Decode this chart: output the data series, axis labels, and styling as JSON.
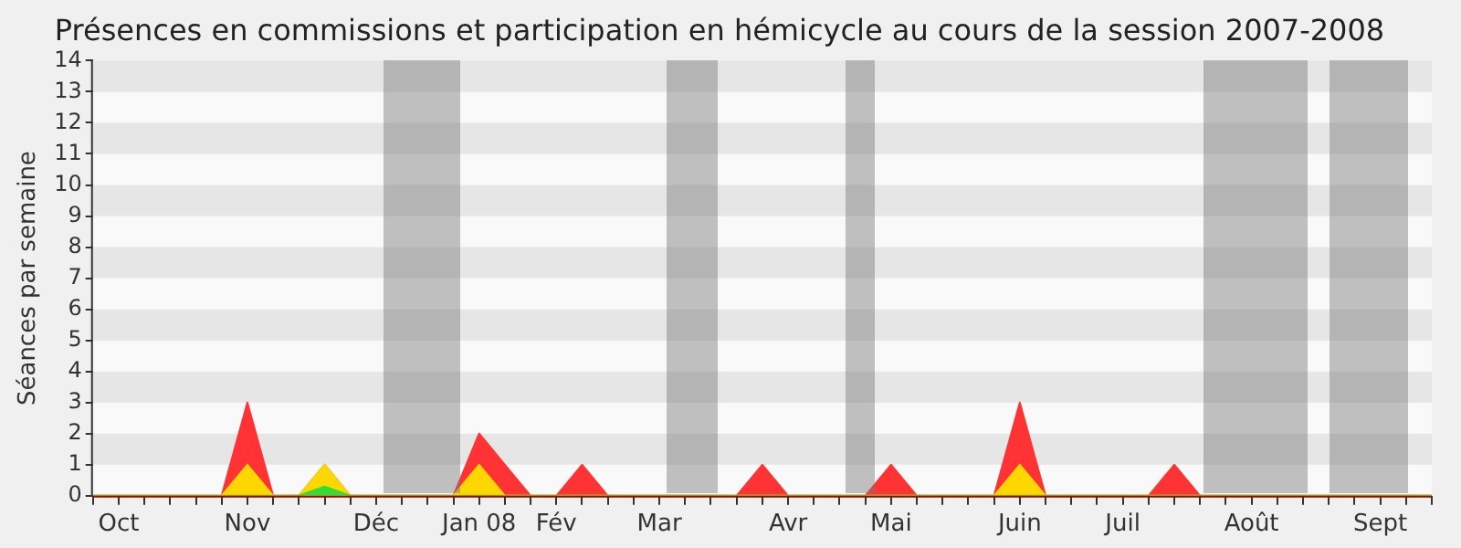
{
  "chart_data": {
    "type": "area",
    "title": "Présences en commissions et participation en hémicycle au cours de la session 2007-2008",
    "ylabel": "Séances par semaine",
    "categories": [
      null,
      "Oct",
      null,
      null,
      null,
      null,
      "Nov",
      null,
      null,
      null,
      null,
      "Déc",
      null,
      null,
      null,
      "Jan 08",
      null,
      null,
      "Fév",
      null,
      null,
      null,
      "Mar",
      null,
      null,
      null,
      null,
      "Avr",
      null,
      null,
      null,
      "Mai",
      null,
      null,
      null,
      null,
      "Juin",
      null,
      null,
      null,
      "Juil",
      null,
      null,
      null,
      null,
      "Août",
      null,
      null,
      null,
      null,
      "Sept",
      null,
      null
    ],
    "ylim": [
      0,
      14
    ],
    "yticks": [
      0,
      1,
      2,
      3,
      4,
      5,
      6,
      7,
      8,
      9,
      10,
      11,
      12,
      13,
      14
    ],
    "marker": "none",
    "series": [
      {
        "color": "#ff3333",
        "values": [
          0,
          0,
          0,
          0,
          0,
          0,
          3,
          0,
          0,
          1,
          0,
          0,
          0,
          0,
          0,
          2,
          1,
          0,
          0,
          1,
          0,
          0,
          0,
          0,
          0,
          0,
          1,
          0,
          0,
          0,
          0,
          1,
          0,
          0,
          0,
          0,
          3,
          0,
          0,
          0,
          0,
          0,
          1,
          0,
          0,
          0,
          0,
          0,
          0,
          0,
          0,
          0,
          0
        ]
      },
      {
        "color": "#ffd700",
        "values": [
          0,
          0,
          0,
          0,
          0,
          0,
          1,
          0,
          0,
          1,
          0,
          0,
          0,
          0,
          0,
          1,
          0,
          0,
          0,
          0,
          0,
          0,
          0,
          0,
          0,
          0,
          0,
          0,
          0,
          0,
          0,
          0,
          0,
          0,
          0,
          0,
          1,
          0,
          0,
          0,
          0,
          0,
          0,
          0,
          0,
          0,
          0,
          0,
          0,
          0,
          0,
          0,
          0
        ]
      },
      {
        "color": "#33dd33",
        "values": [
          0,
          0,
          0,
          0,
          0,
          0,
          0,
          0,
          0,
          0.3,
          0,
          0,
          0,
          0,
          0,
          0,
          0,
          0,
          0,
          0,
          0,
          0,
          0,
          0,
          0,
          0,
          0,
          0,
          0,
          0,
          0,
          0,
          0,
          0,
          0,
          0,
          0,
          0,
          0,
          0,
          0,
          0,
          0,
          0,
          0,
          0,
          0,
          0,
          0,
          0,
          0,
          0,
          0
        ]
      }
    ]
  }
}
